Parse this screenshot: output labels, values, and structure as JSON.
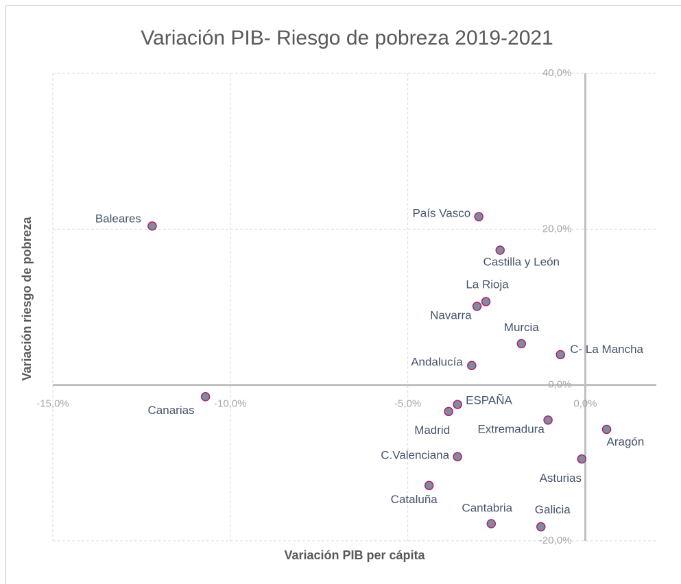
{
  "chart_data": {
    "type": "scatter",
    "title": "Variación PIB- Riesgo de pobreza 2019-2021",
    "x_label": "Variación PIB per cápita",
    "y_label": "Variación riesgo de pobreza",
    "labels": [
      "Baleares",
      "País Vasco",
      "Castilla y León",
      "La Rioja",
      "Navarra",
      "Murcia",
      "C- La Mancha",
      "Andalucía",
      "Canarias",
      "ESPAÑA",
      "Madrid",
      "Extremadura",
      "Aragón",
      "C.Valenciana",
      "Asturias",
      "Cataluña",
      "Cantabria",
      "Galicia"
    ],
    "x": [
      -12.2,
      -3.0,
      -2.4,
      -2.8,
      -3.05,
      -1.8,
      -0.7,
      -3.2,
      -10.7,
      -3.6,
      -3.85,
      -1.05,
      0.6,
      -3.6,
      -0.1,
      -4.4,
      -2.65,
      -1.25
    ],
    "values": [
      20.4,
      21.6,
      17.3,
      10.7,
      10.1,
      5.3,
      3.9,
      2.5,
      -1.5,
      -2.5,
      -3.4,
      -4.5,
      -5.7,
      -9.2,
      -9.5,
      -12.9,
      -17.8,
      -18.2
    ],
    "color": "#7f8c9e",
    "edge_color": "#b0216a",
    "xlim": [
      -15,
      2
    ],
    "ylim": [
      -20,
      40
    ],
    "xticks": [
      {
        "value": -15,
        "label": "-15,0%"
      },
      {
        "value": -10,
        "label": "-10,0%"
      },
      {
        "value": -5,
        "label": "-5,0%"
      },
      {
        "value": 0,
        "label": "0,0%"
      }
    ],
    "yticks": [
      {
        "value": -20,
        "label": "-20,0%"
      },
      {
        "value": 0,
        "label": "0,0%"
      },
      {
        "value": 20,
        "label": "20,0%"
      },
      {
        "value": 40,
        "label": "40,0%"
      }
    ],
    "grid": true
  }
}
